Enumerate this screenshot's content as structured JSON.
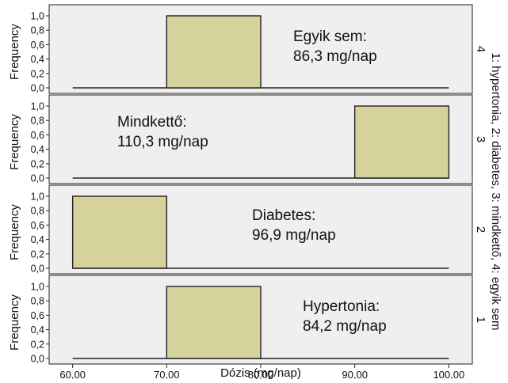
{
  "chart_data": {
    "type": "bar",
    "xlabel": "Dózis (mg/nap)",
    "ylabel": "Frequency",
    "xlim": [
      57.5,
      102.5
    ],
    "ylim": [
      0,
      1.0
    ],
    "x_ticks": [
      "60,00",
      "70,00",
      "80,00",
      "90,00",
      "100,00"
    ],
    "x_tick_values": [
      60,
      70,
      80,
      90,
      100
    ],
    "y_ticks": [
      "0,0",
      "0,2",
      "0,4",
      "0,6",
      "0,8",
      "1,0"
    ],
    "y_tick_values": [
      0,
      0.2,
      0.4,
      0.6,
      0.8,
      1.0
    ],
    "grid": false,
    "facet_label": "1: hypertonia, 2: diabetes, 3: mindkettő, 4: egyik sem",
    "bar_color": "#d6d29c",
    "panel_color": "#efefef",
    "panels": [
      {
        "id": "4",
        "annotation": [
          "Egyik sem:",
          "86,3 mg/nap"
        ],
        "bins": [
          {
            "x0": 70,
            "x1": 80,
            "value": 1.0
          }
        ]
      },
      {
        "id": "3",
        "annotation": [
          "Mindkettő:",
          "110,3 mg/nap"
        ],
        "bins": [
          {
            "x0": 90,
            "x1": 100,
            "value": 1.0
          }
        ]
      },
      {
        "id": "2",
        "annotation": [
          "Diabetes:",
          "96,9 mg/nap"
        ],
        "bins": [
          {
            "x0": 60,
            "x1": 70,
            "value": 1.0
          }
        ]
      },
      {
        "id": "1",
        "annotation": [
          "Hypertonia:",
          "84,2 mg/nap"
        ],
        "bins": [
          {
            "x0": 70,
            "x1": 80,
            "value": 1.0
          }
        ]
      }
    ]
  }
}
